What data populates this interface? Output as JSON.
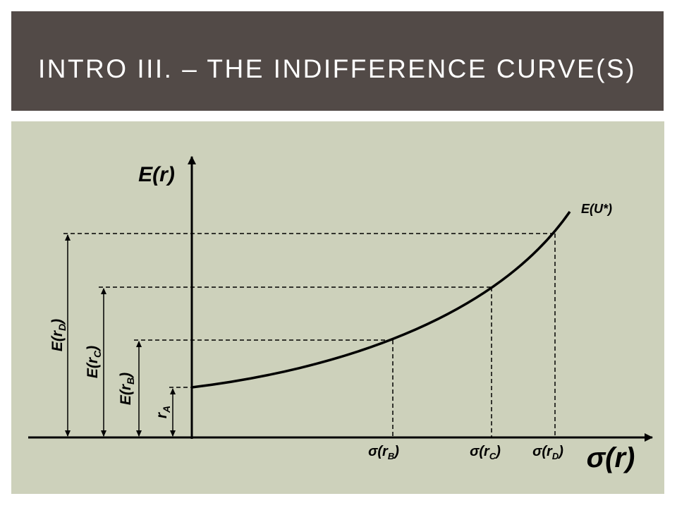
{
  "header": {
    "title": "INTRO III. – THE INDIFFERENCE CURVE(S)"
  },
  "diagram": {
    "y_axis_label": "E(r)",
    "x_axis_label": "σ(r)",
    "curve_label": "E(U*)",
    "x_labels": [
      {
        "main": "σ(r",
        "sub": "B",
        "close": ")"
      },
      {
        "main": "σ(r",
        "sub": "C",
        "close": ")"
      },
      {
        "main": "σ(r",
        "sub": "D",
        "close": ")"
      }
    ],
    "y_labels": [
      {
        "main": "E(r",
        "sub": "D",
        "close": ")"
      },
      {
        "main": "E(r",
        "sub": "C",
        "close": ")"
      },
      {
        "main": "E(r",
        "sub": "B",
        "close": ")"
      },
      {
        "main": "r",
        "sub": "A",
        "close": ""
      }
    ]
  }
}
